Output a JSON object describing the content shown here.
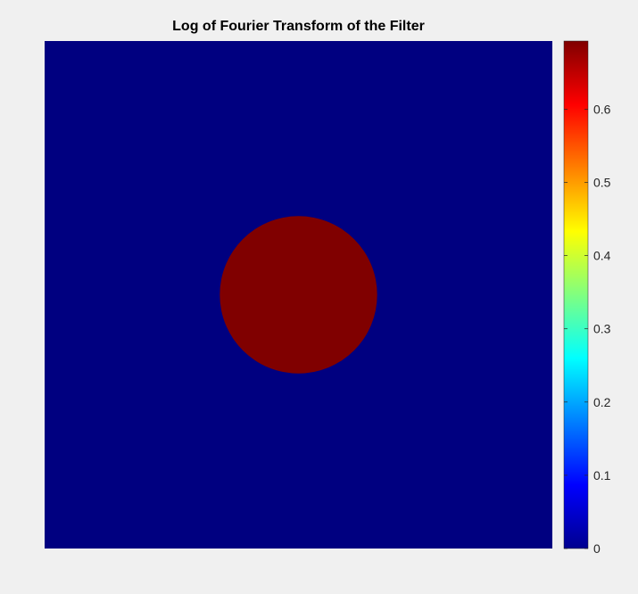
{
  "chart_data": {
    "type": "heatmap",
    "title": "Log of Fourier Transform of the Filter",
    "xlabel": "",
    "ylabel": "",
    "image": {
      "background_value": 0,
      "disk": {
        "center_fraction": [
          0.5,
          0.5
        ],
        "radius_fraction": 0.155,
        "value": 0.693
      }
    },
    "colorbar": {
      "colormap": "jet",
      "clim": [
        0,
        0.693
      ],
      "ticks": [
        0,
        0.1,
        0.2,
        0.3,
        0.4,
        0.5,
        0.6
      ],
      "tick_labels": [
        "0",
        "0.1",
        "0.2",
        "0.3",
        "0.4",
        "0.5",
        "0.6"
      ]
    },
    "axes_visible": false,
    "grid": false
  }
}
